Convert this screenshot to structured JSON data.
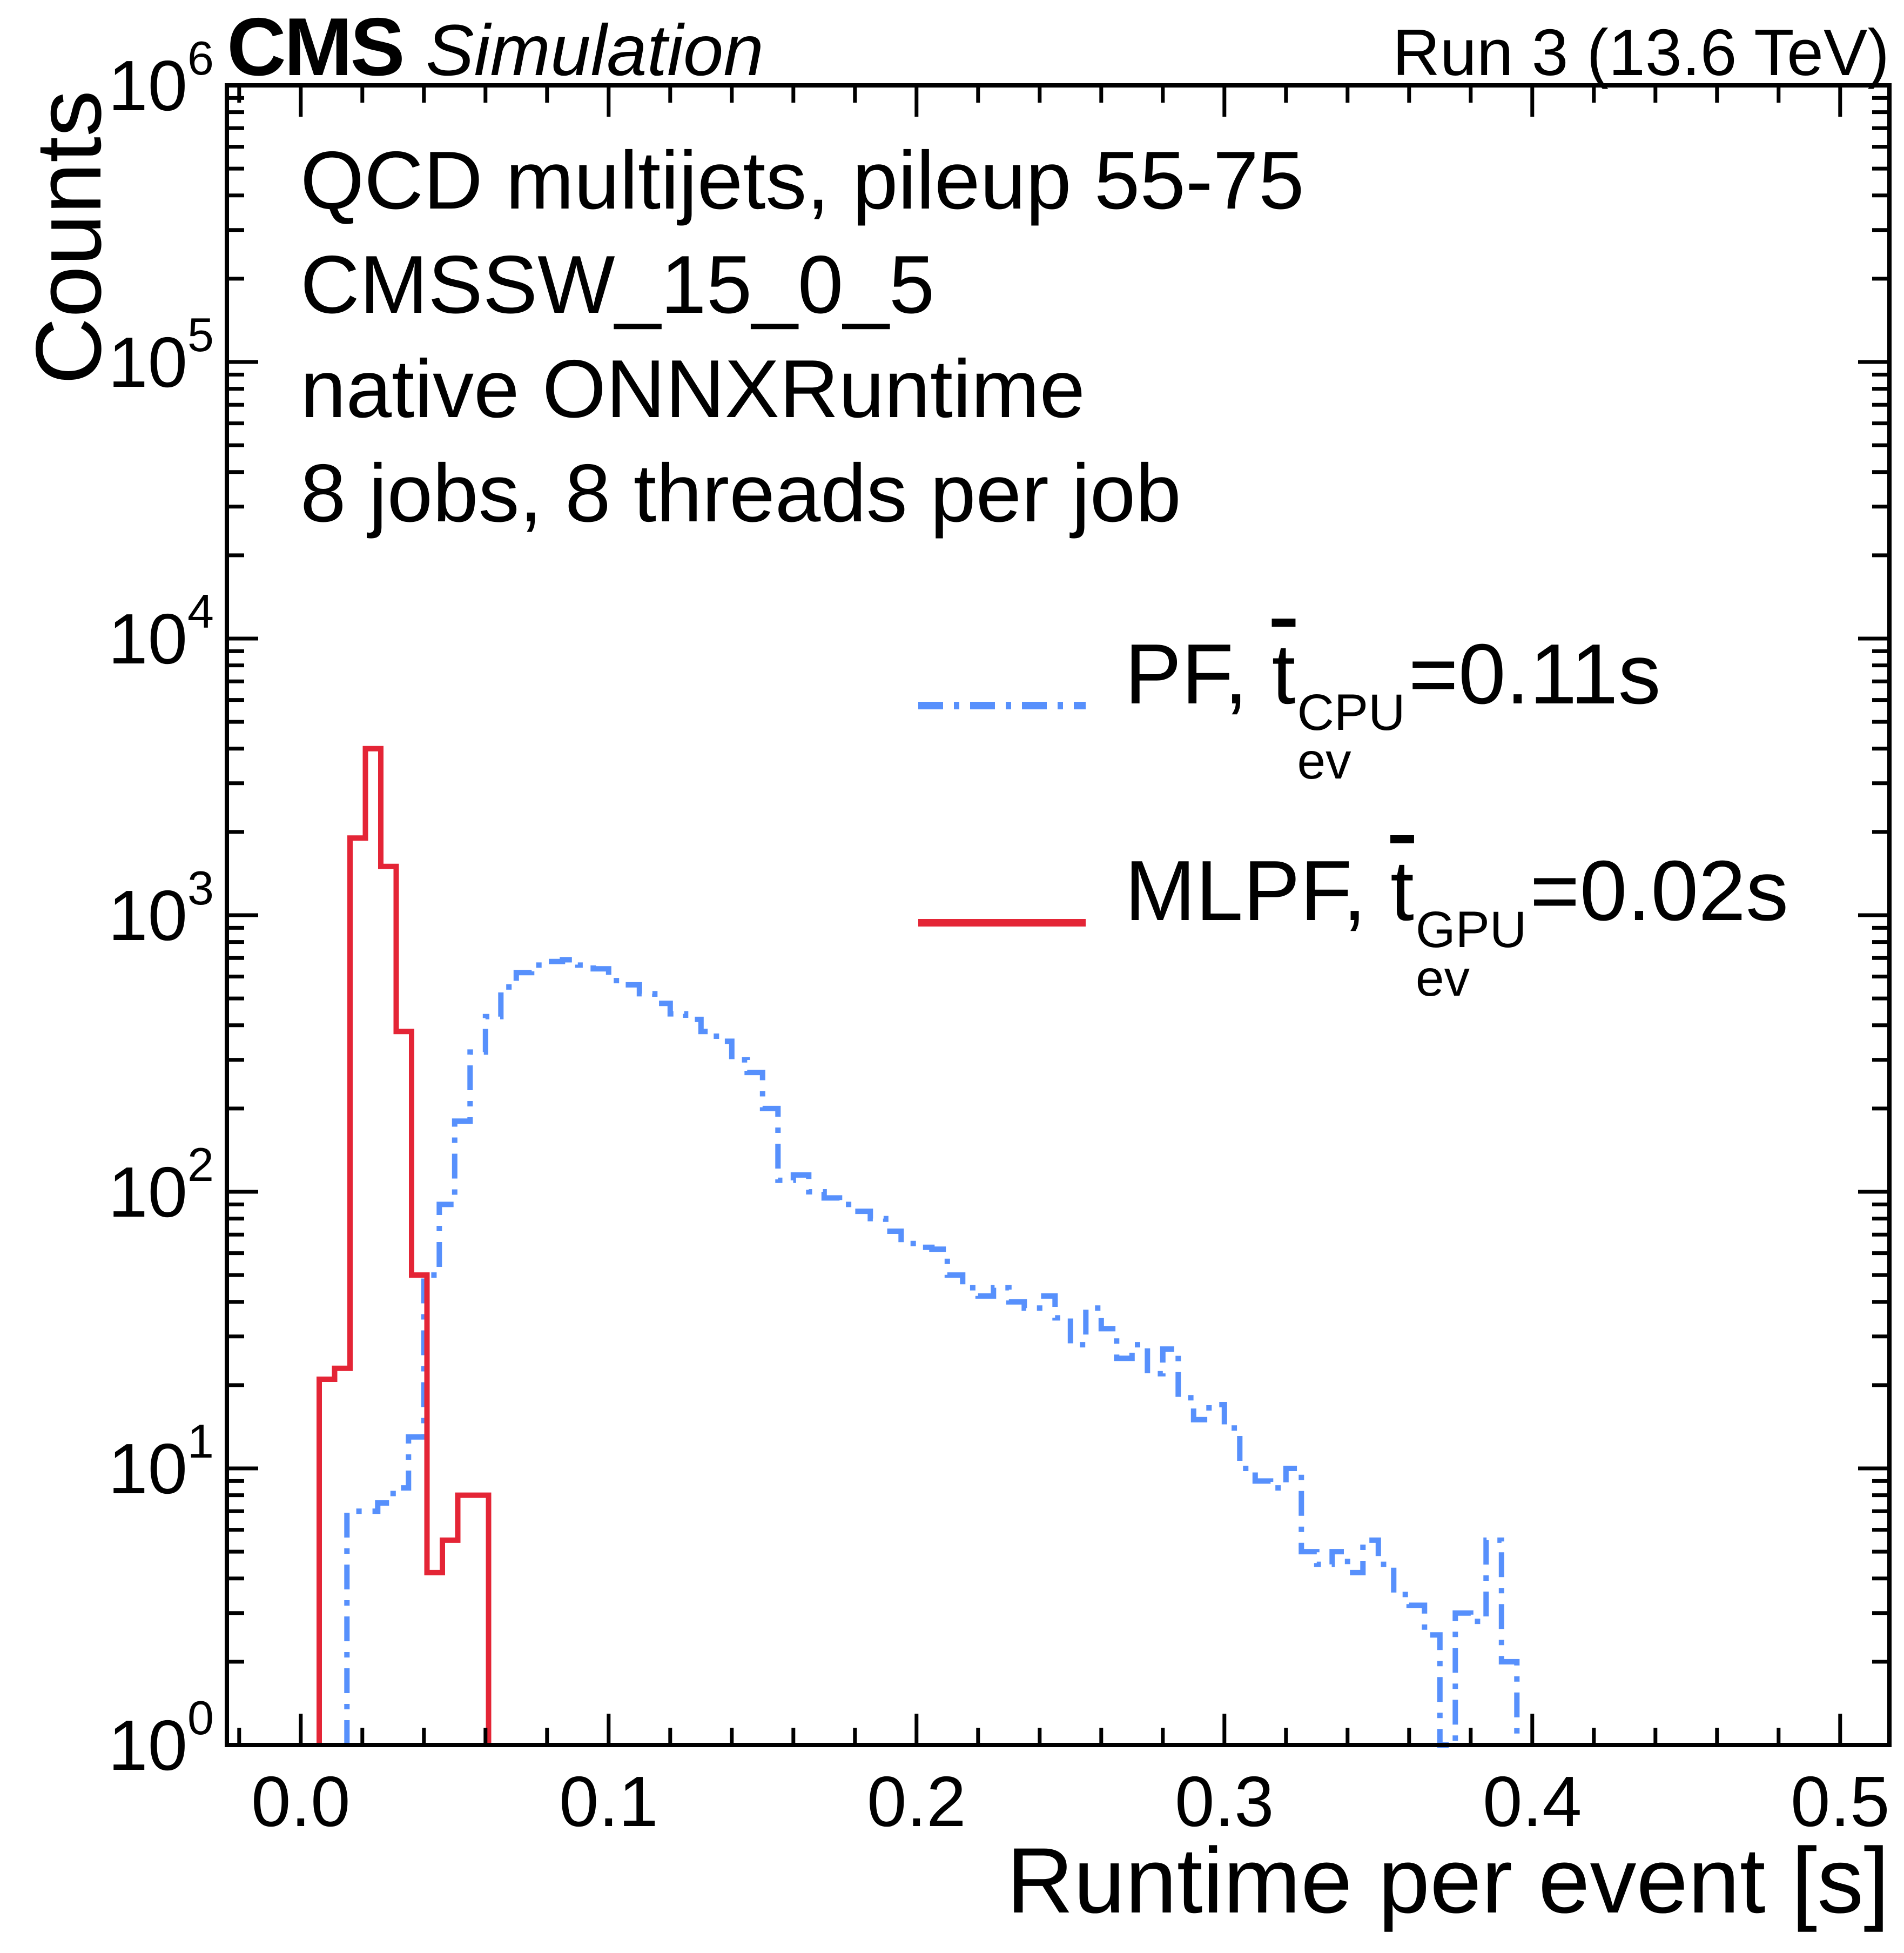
{
  "header": {
    "experiment": "CMS",
    "work_label": "Simulation",
    "right_label": "Run 3 (13.6 TeV)"
  },
  "annotations": {
    "lines": [
      "QCD multijets, pileup 55-75",
      "CMSSW_15_0_5",
      "native ONNXRuntime",
      "8 jobs, 8 threads per job"
    ]
  },
  "legend": {
    "entries": [
      {
        "prefix": "PF,",
        "mean_symbol": "t",
        "sup": "CPU",
        "sub": "ev",
        "suffix": "=0.11s",
        "color": "#5790fc",
        "linestyle": "dashdot"
      },
      {
        "prefix": "MLPF,",
        "mean_symbol": "t",
        "sup": "GPU",
        "sub": "ev",
        "suffix": "=0.02s",
        "color": "#e42536",
        "linestyle": "solid"
      }
    ]
  },
  "chart_data": {
    "type": "line",
    "mark": "step-histogram",
    "title": "",
    "xlabel": "Runtime per event [s]",
    "ylabel": "Counts",
    "xlim": [
      -0.024,
      0.516
    ],
    "ylim": [
      1,
      1000000
    ],
    "yscale": "log",
    "grid": false,
    "legend_position": "upper right inside",
    "x_ticks": {
      "values": [
        0.0,
        0.1,
        0.2,
        0.3,
        0.4,
        0.5
      ],
      "labels": [
        "0.0",
        "0.1",
        "0.2",
        "0.3",
        "0.4",
        "0.5"
      ]
    },
    "x_minor_step": 0.02,
    "y_tick_exponents": [
      0,
      1,
      2,
      3,
      4,
      5,
      6
    ],
    "series": [
      {
        "name": "PF",
        "device": "CPU",
        "mean_runtime_s": 0.11,
        "color": "#5790fc",
        "linestyle": "dashdot",
        "bin_start": 0.015,
        "bin_width": 0.005,
        "counts": [
          7,
          7,
          7.5,
          8.5,
          13,
          50,
          90,
          180,
          320,
          430,
          550,
          620,
          660,
          680,
          690,
          660,
          640,
          580,
          560,
          520,
          480,
          440,
          420,
          380,
          350,
          300,
          270,
          200,
          110,
          115,
          100,
          95,
          90,
          85,
          80,
          72,
          65,
          63,
          62,
          50,
          45,
          42,
          45,
          40,
          38,
          42,
          35,
          28,
          38,
          32,
          25,
          28,
          22,
          27,
          18,
          15,
          17,
          14,
          10,
          9,
          8.5,
          10,
          5,
          4.5,
          5,
          4.2,
          5.5,
          4.5,
          3.5,
          3.2,
          2.5,
          1,
          3,
          2.8,
          5.5,
          2
        ]
      },
      {
        "name": "MLPF",
        "device": "GPU",
        "mean_runtime_s": 0.02,
        "color": "#e42536",
        "linestyle": "solid",
        "bin_start": 0.006,
        "bin_width": 0.005,
        "counts": [
          21,
          23,
          1900,
          4000,
          1500,
          380,
          50,
          4.2,
          5.5,
          8,
          8
        ]
      }
    ]
  }
}
